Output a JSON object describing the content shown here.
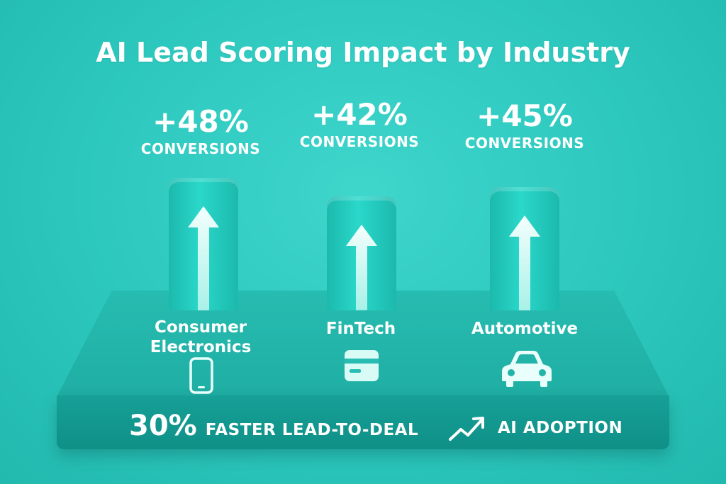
{
  "chart_data": {
    "type": "bar",
    "title": "AI Lead Scoring Impact by Industry",
    "categories": [
      "Consumer Electronics",
      "FinTech",
      "Automotive"
    ],
    "values": [
      48,
      42,
      45
    ],
    "value_labels": [
      "+48%",
      "+42%",
      "+45%"
    ],
    "unit_caption": "CONVERSIONS",
    "xlabel": "",
    "ylabel": "",
    "grid": false,
    "legend": "none"
  },
  "industries": [
    {
      "label_line1": "Consumer",
      "label_line2": "Electronics",
      "icon": "smartphone-icon"
    },
    {
      "label_line1": "FinTech",
      "label_line2": "",
      "icon": "credit-card-icon"
    },
    {
      "label_line1": "Automotive",
      "label_line2": "",
      "icon": "car-icon"
    }
  ],
  "footer": {
    "stat_number": "30%",
    "stat_text": "FASTER LEAD-TO-DEAL",
    "adoption_text": "AI ADOPTION",
    "adoption_icon": "trend-up-icon"
  },
  "colors": {
    "background": "#2cc7bd",
    "bar": "#22c9bc",
    "platform_top": "#22b4a9",
    "platform_front": "#12988f",
    "text": "#ffffff"
  }
}
